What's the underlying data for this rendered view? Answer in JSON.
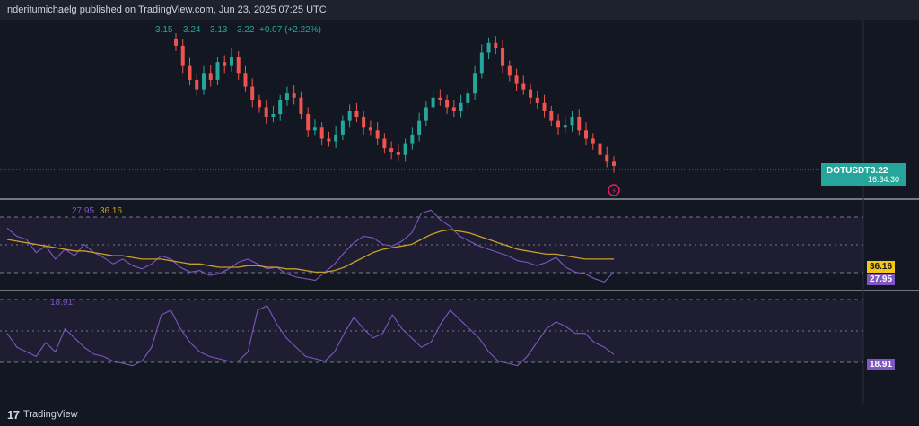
{
  "header": {
    "publisher_line": "nderitumichaelg published on TradingView.com, Jun 23, 2025 07:25 UTC"
  },
  "legend": {
    "open": "3.15",
    "high": "3.24",
    "low": "3.13",
    "close": "3.22",
    "change": "+0.07 (+2.22%)",
    "rsi": "27.95",
    "rsi_ma": "36.16",
    "adx": "18.91"
  },
  "price_tag": {
    "symbol": "DOTUSDT",
    "price": "3.22",
    "countdown": "16:34:30"
  },
  "rsi_tags": {
    "ma": "36.16",
    "rsi": "27.95"
  },
  "adx_tag": "18.91",
  "footer": {
    "brand": "TradingView"
  },
  "colors": {
    "up": "#26a69a",
    "down": "#ef5350",
    "rsi": "#7e57c2",
    "rsi_ma": "#c7a02b",
    "bg": "#131722"
  },
  "chart_data": [
    {
      "type": "line",
      "title": "",
      "description_series": "price candlesticks (approximate closes)",
      "series": [
        {
          "name": "DOTUSDT",
          "values": [
            4.1,
            3.95,
            3.85,
            3.78,
            3.9,
            3.85,
            3.98,
            3.95,
            4.02,
            3.9,
            3.8,
            3.7,
            3.65,
            3.58,
            3.6,
            3.7,
            3.75,
            3.72,
            3.6,
            3.48,
            3.5,
            3.42,
            3.4,
            3.45,
            3.55,
            3.62,
            3.58,
            3.5,
            3.48,
            3.42,
            3.35,
            3.32,
            3.3,
            3.38,
            3.45,
            3.55,
            3.65,
            3.72,
            3.7,
            3.65,
            3.62,
            3.68,
            3.75,
            3.9,
            4.05,
            4.12,
            4.08,
            3.95,
            3.88,
            3.82,
            3.78,
            3.72,
            3.68,
            3.62,
            3.55,
            3.5,
            3.52,
            3.58,
            3.48,
            3.42,
            3.38,
            3.3,
            3.25,
            3.22
          ]
        }
      ],
      "ylim": [
        3.2,
        4.25
      ]
    },
    {
      "type": "line",
      "series": [
        {
          "name": "",
          "values": [
            55,
            50,
            48,
            40,
            44,
            36,
            42,
            38,
            45,
            40,
            37,
            33,
            36,
            32,
            30,
            33,
            38,
            36,
            31,
            28,
            29,
            26,
            27,
            30,
            34,
            36,
            33,
            30,
            31,
            27,
            25,
            24,
            23,
            28,
            33,
            40,
            46,
            50,
            49,
            45,
            44,
            47,
            52,
            64,
            66,
            60,
            56,
            50,
            47,
            44,
            42,
            40,
            38,
            35,
            34,
            32,
            34,
            37,
            31,
            28,
            27,
            24,
            22,
            28
          ]
        },
        {
          "name": "",
          "values": [
            48,
            47,
            46,
            45,
            44,
            43,
            42,
            41,
            41,
            40,
            39,
            38,
            38,
            37,
            36,
            36,
            36,
            35,
            34,
            33,
            33,
            32,
            31,
            31,
            31,
            32,
            32,
            31,
            31,
            30,
            30,
            29,
            28,
            28,
            29,
            31,
            34,
            37,
            40,
            42,
            43,
            44,
            45,
            48,
            51,
            53,
            54,
            53,
            52,
            50,
            48,
            46,
            44,
            42,
            41,
            40,
            39,
            39,
            38,
            37,
            36,
            36,
            36,
            36
          ]
        }
      ],
      "ylim": [
        20,
        70
      ]
    },
    {
      "type": "line",
      "series": [
        {
          "name": "",
          "values": [
            28,
            22,
            20,
            18,
            24,
            20,
            30,
            26,
            22,
            19,
            18,
            16,
            15,
            14,
            16,
            22,
            36,
            38,
            30,
            24,
            20,
            18,
            17,
            16,
            16,
            20,
            38,
            40,
            32,
            26,
            22,
            18,
            17,
            16,
            20,
            28,
            35,
            30,
            26,
            28,
            36,
            30,
            26,
            22,
            24,
            32,
            38,
            34,
            30,
            26,
            20,
            16,
            15,
            14,
            18,
            24,
            30,
            33,
            31,
            28,
            28,
            24,
            22,
            18.91
          ]
        }
      ],
      "ylim": [
        10,
        45
      ]
    }
  ]
}
